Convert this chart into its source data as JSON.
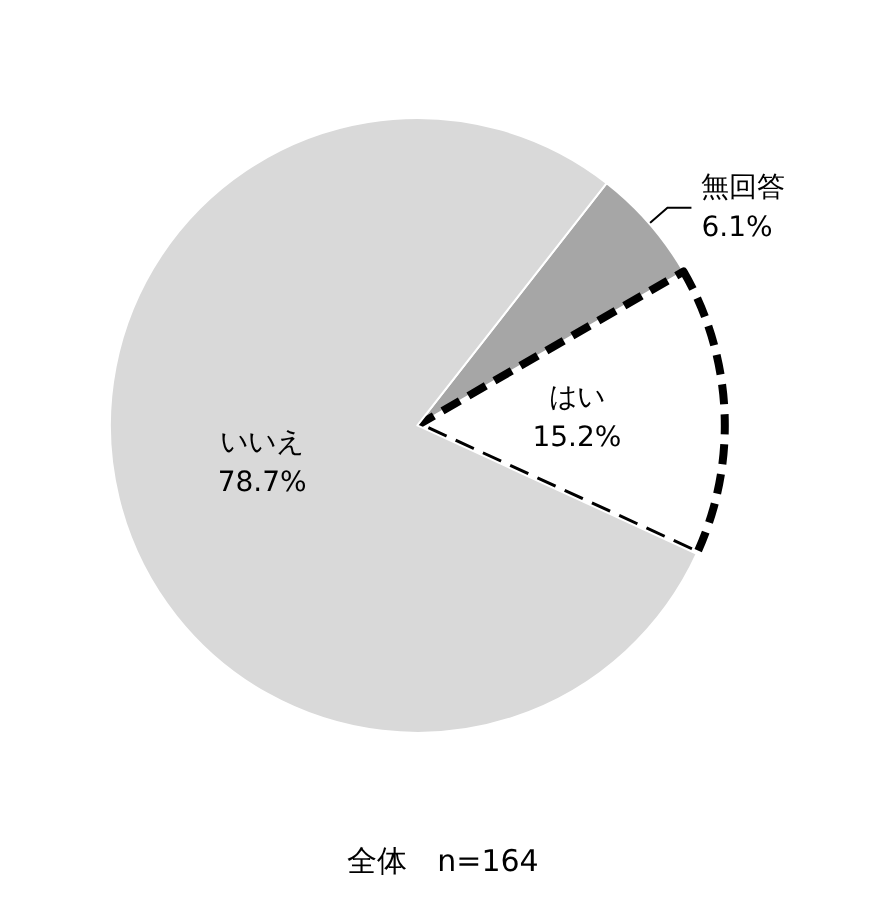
{
  "chart_data": {
    "type": "pie",
    "title": "全体　n=164",
    "categories": [
      "無回答",
      "はい",
      "いいえ"
    ],
    "values": [
      6.1,
      15.2,
      78.7
    ],
    "colors": [
      "#a6a6a6",
      "#ffffff",
      "#d9d9d9"
    ],
    "value_labels": [
      "6.1%",
      "15.2%",
      "78.7%"
    ],
    "legend": false
  }
}
